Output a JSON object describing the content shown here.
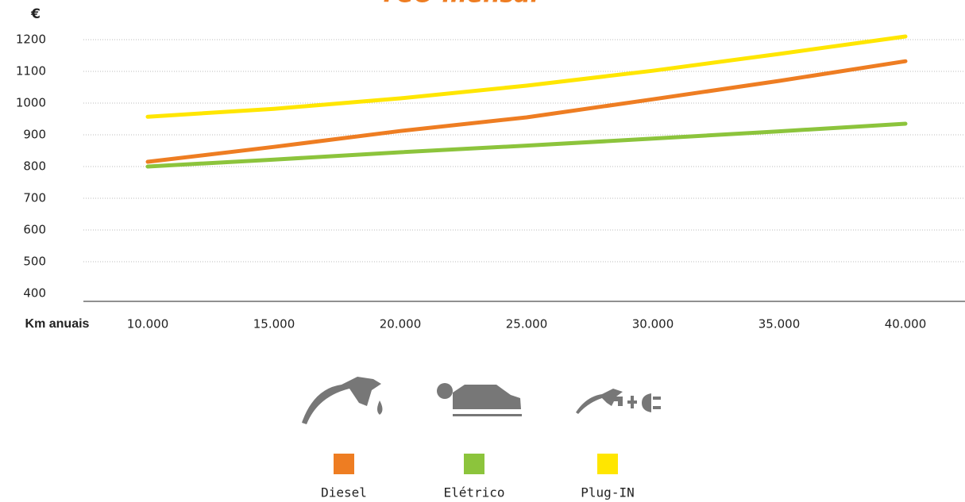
{
  "chart_data": {
    "type": "line",
    "title": "TCO mensal",
    "y_label": "€",
    "x_label": "Km anuais",
    "x": [
      10000,
      15000,
      20000,
      25000,
      30000,
      35000,
      40000
    ],
    "xlim": [
      10000,
      40000
    ],
    "xticks": [
      {
        "value": 10000,
        "label": "10.000"
      },
      {
        "value": 15000,
        "label": "15.000"
      },
      {
        "value": 20000,
        "label": "20.000"
      },
      {
        "value": 25000,
        "label": "25.000"
      },
      {
        "value": 30000,
        "label": "30.000"
      },
      {
        "value": 35000,
        "label": "35.000"
      },
      {
        "value": 40000,
        "label": "40.000"
      }
    ],
    "ylim": [
      400,
      1200
    ],
    "yticks": [
      400,
      500,
      600,
      700,
      800,
      900,
      1000,
      1100,
      1200
    ],
    "grid": true,
    "legend": "bottom",
    "series": [
      {
        "name": "Diesel",
        "color": "#ee7d22",
        "values": [
          815,
          862,
          912,
          955,
          1012,
          1070,
          1132
        ]
      },
      {
        "name": "Elétrico",
        "color": "#8cc43c",
        "values": [
          800,
          822,
          845,
          866,
          888,
          911,
          935
        ]
      },
      {
        "name": "Plug-IN",
        "color": "#ffe600",
        "values": [
          957,
          982,
          1015,
          1055,
          1102,
          1155,
          1210
        ]
      }
    ]
  }
}
